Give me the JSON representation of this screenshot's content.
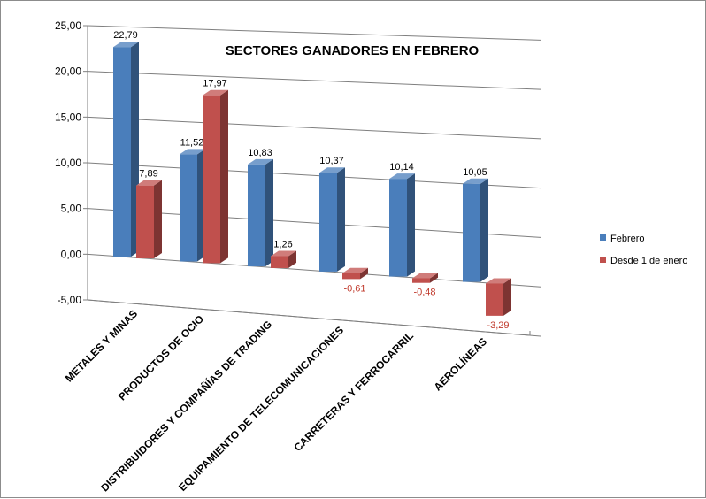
{
  "chart_data": {
    "type": "bar",
    "title": "SECTORES GANADORES EN FEBRERO",
    "xlabel": "",
    "ylabel": "",
    "ylim": [
      -5,
      25
    ],
    "yticks": [
      "-5,00",
      "0,00",
      "5,00",
      "10,00",
      "15,00",
      "20,00",
      "25,00"
    ],
    "categories": [
      "METALES Y MINAS",
      "PRODUCTOS DE OCIO",
      "DISTRIBUIDORES Y COMPAÑÍAS DE TRADING",
      "EQUIPAMIENTO DE TELECOMUNICACIONES",
      "CARRETERAS Y FERROCARRIL",
      "AEROLÍNEAS"
    ],
    "series": [
      {
        "name": "Febrero",
        "color": "#4a7ebb",
        "values": [
          22.79,
          11.52,
          10.83,
          10.37,
          10.14,
          10.05
        ],
        "labels": [
          "22,79",
          "11,52",
          "10,83",
          "10,37",
          "10,14",
          "10,05"
        ]
      },
      {
        "name": "Desde 1 de enero",
        "color": "#c0504d",
        "values": [
          7.89,
          17.97,
          1.26,
          -0.61,
          -0.48,
          -3.29
        ],
        "labels": [
          "7,89",
          "17,97",
          "1,26",
          "-0,61",
          "-0,48",
          "-3,29"
        ]
      }
    ],
    "legend_position": "right",
    "grid": true
  }
}
